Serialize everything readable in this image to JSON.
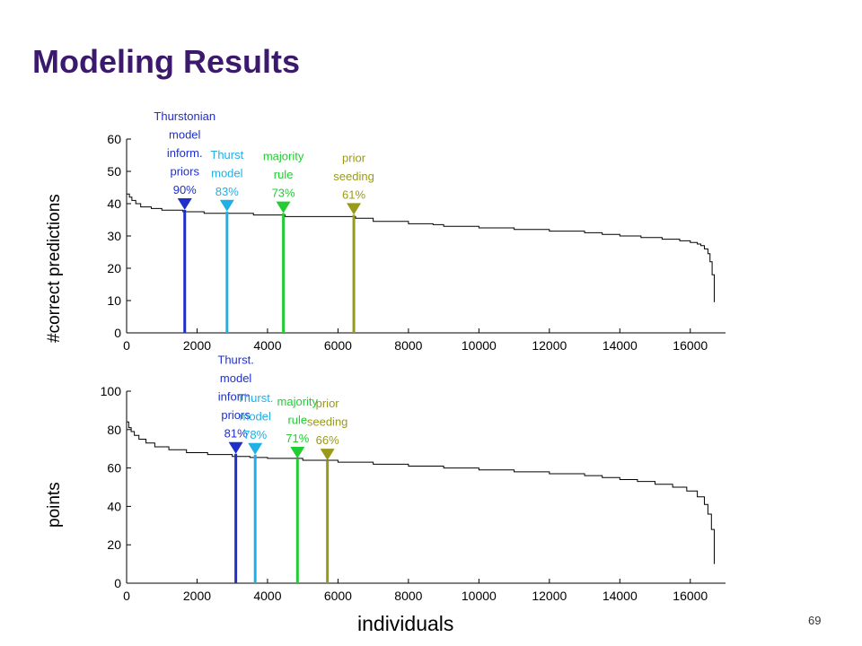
{
  "slide": {
    "title": "Modeling Results",
    "page_number": "69",
    "x_axis_label": "individuals"
  },
  "chart_data": [
    {
      "type": "line",
      "ylabel": "#correct predictions",
      "xlim": [
        0,
        17000
      ],
      "ylim": [
        0,
        60
      ],
      "xticks": [
        0,
        2000,
        4000,
        6000,
        8000,
        10000,
        12000,
        14000,
        16000
      ],
      "xtick_labels": [
        "0",
        "2000",
        "4000",
        "6000",
        "8000",
        "10000",
        "12000",
        "14000",
        "16000"
      ],
      "yticks": [
        0,
        10,
        20,
        30,
        40,
        50,
        60
      ],
      "ytick_labels": [
        "0",
        "10",
        "20",
        "30",
        "40",
        "50",
        "60"
      ],
      "curve": {
        "x": [
          0,
          80,
          150,
          260,
          400,
          700,
          1000,
          1600,
          2200,
          2900,
          3600,
          4500,
          5500,
          6500,
          7000,
          8000,
          8700,
          9000,
          10000,
          11000,
          12000,
          13000,
          13500,
          14000,
          14600,
          15200,
          15700,
          16000,
          16200,
          16300,
          16400,
          16500,
          16560,
          16620,
          16680
        ],
        "y": [
          43,
          42,
          41,
          40,
          39,
          38.5,
          38,
          37.5,
          37,
          37,
          36.5,
          36,
          36,
          35.5,
          34.5,
          33.8,
          33.5,
          33,
          32.5,
          32,
          31.5,
          31,
          30.5,
          30,
          29.5,
          29,
          28.5,
          28,
          27.5,
          27,
          26,
          24.5,
          22,
          18,
          9.5
        ]
      },
      "markers": [
        {
          "lines": [
            "Thurstonian",
            "model",
            "inform.",
            "priors",
            "90%"
          ],
          "x": 1650,
          "y": 37.5,
          "color": "#1f2fcc"
        },
        {
          "lines": [
            "Thurst",
            "model",
            "83%"
          ],
          "x": 2850,
          "y": 37,
          "color": "#1fb0e6"
        },
        {
          "lines": [
            "majority",
            "rule",
            "73%"
          ],
          "x": 4450,
          "y": 36.5,
          "color": "#22cc33"
        },
        {
          "lines": [
            "prior",
            "seeding",
            "61%"
          ],
          "x": 6450,
          "y": 36,
          "color": "#9a9a1a"
        }
      ]
    },
    {
      "type": "line",
      "ylabel": "points",
      "xlim": [
        0,
        17000
      ],
      "ylim": [
        0,
        100
      ],
      "xticks": [
        0,
        2000,
        4000,
        6000,
        8000,
        10000,
        12000,
        14000,
        16000
      ],
      "xtick_labels": [
        "0",
        "2000",
        "4000",
        "6000",
        "8000",
        "10000",
        "12000",
        "14000",
        "16000"
      ],
      "yticks": [
        0,
        20,
        40,
        60,
        80,
        100
      ],
      "ytick_labels": [
        "0",
        "20",
        "40",
        "60",
        "80",
        "100"
      ],
      "curve": {
        "x": [
          0,
          60,
          130,
          220,
          350,
          550,
          800,
          1200,
          1700,
          2300,
          3000,
          3500,
          4000,
          5000,
          6000,
          7000,
          8000,
          9000,
          10000,
          11000,
          12000,
          13000,
          13500,
          14000,
          14500,
          15000,
          15500,
          15900,
          16200,
          16400,
          16500,
          16600,
          16680
        ],
        "y": [
          84,
          81,
          79,
          77,
          75,
          73,
          71,
          69.5,
          68,
          67,
          66,
          65.5,
          65,
          64,
          63,
          62,
          61,
          60,
          59,
          58,
          57,
          56,
          55,
          54,
          53,
          51.5,
          50,
          48,
          45,
          41,
          36,
          28,
          10
        ]
      },
      "markers": [
        {
          "lines": [
            "Thurst.",
            "model",
            "inform.",
            "priors",
            "81%"
          ],
          "x": 3100,
          "y": 66.5,
          "color": "#1f2fcc"
        },
        {
          "lines": [
            "Thurst.",
            "model",
            "78%"
          ],
          "x": 3650,
          "y": 66,
          "color": "#1fb0e6"
        },
        {
          "lines": [
            "majority",
            "rule",
            "71%"
          ],
          "x": 4850,
          "y": 64,
          "color": "#22cc33"
        },
        {
          "lines": [
            "prior",
            "seeding",
            "66%"
          ],
          "x": 5700,
          "y": 63,
          "color": "#9a9a1a"
        }
      ]
    }
  ]
}
